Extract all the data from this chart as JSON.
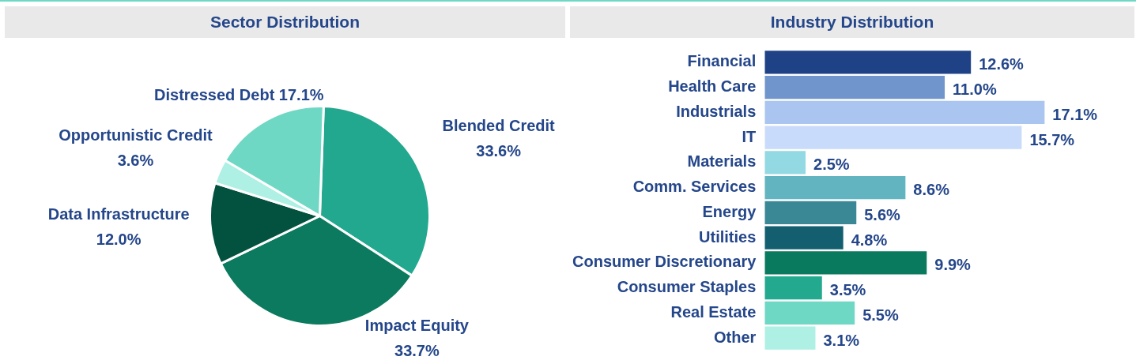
{
  "chart_data": [
    {
      "type": "pie",
      "title": "Sector Distribution",
      "categories": [
        "Blended Credit",
        "Impact Equity",
        "Data Infrastructure",
        "Opportunistic Credit",
        "Distressed Debt"
      ],
      "values": [
        33.6,
        33.7,
        12.0,
        3.6,
        17.1
      ],
      "value_labels": [
        "33.6%",
        "33.7%",
        "12.0%",
        "3.6%",
        "17.1%"
      ],
      "colors": [
        "#22a88e",
        "#0b7a5e",
        "#03513f",
        "#aef0e3",
        "#6fd8c4"
      ]
    },
    {
      "type": "bar",
      "orientation": "horizontal",
      "title": "Industry Distribution",
      "categories": [
        "Financial",
        "Health Care",
        "Industrials",
        "IT",
        "Materials",
        "Comm. Services",
        "Energy",
        "Utilities",
        "Consumer Discretionary",
        "Consumer Staples",
        "Real Estate",
        "Other"
      ],
      "values": [
        12.6,
        11.0,
        17.1,
        15.7,
        2.5,
        8.6,
        5.6,
        4.8,
        9.9,
        3.5,
        5.5,
        3.1
      ],
      "value_labels": [
        "12.6%",
        "11.0%",
        "17.1%",
        "15.7%",
        "2.5%",
        "8.6%",
        "5.6%",
        "4.8%",
        "9.9%",
        "3.5%",
        "5.5%",
        "3.1%"
      ],
      "colors": [
        "#1f4287",
        "#7094cc",
        "#a9c5f0",
        "#c9dbfa",
        "#93d9e3",
        "#62b5c0",
        "#3a8896",
        "#135f70",
        "#0a7a5e",
        "#23a98e",
        "#6fd8c4",
        "#aef0e3"
      ]
    }
  ]
}
